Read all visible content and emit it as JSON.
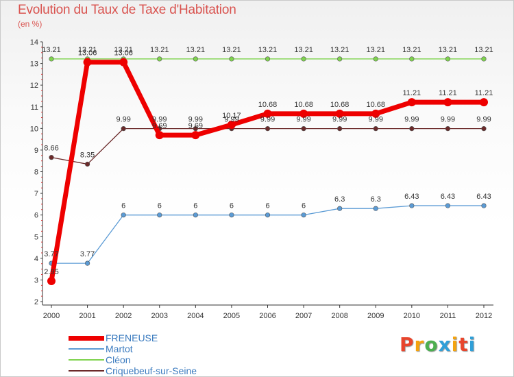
{
  "header": {
    "title": "Evolution du Taux de Taxe d'Habitation",
    "subtitle": "(en %)"
  },
  "logo": {
    "text": "Proxiti",
    "colors": [
      "#e8452c",
      "#f4a30f",
      "#4caf50",
      "#2f9fd8",
      "#f4a30f",
      "#e8452c",
      "#2f9fd8"
    ]
  },
  "chart_data": {
    "type": "line",
    "title": "Evolution du Taux de Taxe d'Habitation",
    "subtitle": "(en %)",
    "x": [
      "2000",
      "2001",
      "2002",
      "2003",
      "2004",
      "2005",
      "2006",
      "2007",
      "2008",
      "2009",
      "2010",
      "2011",
      "2012"
    ],
    "ylim": [
      2,
      14
    ],
    "yticks": [
      2,
      3,
      4,
      5,
      6,
      7,
      8,
      9,
      10,
      11,
      12,
      13,
      14
    ],
    "grid": false,
    "legend_position": "bottom-left",
    "series": [
      {
        "name": "FRENEUSE",
        "color": "#ee0000",
        "values": [
          2.95,
          13.06,
          13.06,
          9.69,
          9.69,
          10.17,
          10.68,
          10.68,
          10.68,
          10.68,
          11.21,
          11.21,
          11.21
        ],
        "labels": [
          "2.95",
          "13.06",
          "13.06",
          "9.69",
          "9.69",
          "10.17",
          "10.68",
          "10.68",
          "10.68",
          "10.68",
          "11.21",
          "11.21",
          "11.21"
        ]
      },
      {
        "name": "Martot",
        "color": "#5b9bd5",
        "values": [
          3.77,
          3.77,
          6,
          6,
          6,
          6,
          6,
          6,
          6.3,
          6.3,
          6.43,
          6.43,
          6.43
        ],
        "labels": [
          "3.77",
          "3.77",
          "6",
          "6",
          "6",
          "6",
          "6",
          "6",
          "6.3",
          "6.3",
          "6.43",
          "6.43",
          "6.43"
        ]
      },
      {
        "name": "Cléon",
        "color": "#7fd34e",
        "values": [
          13.21,
          13.21,
          13.21,
          13.21,
          13.21,
          13.21,
          13.21,
          13.21,
          13.21,
          13.21,
          13.21,
          13.21,
          13.21
        ],
        "labels": [
          "13.21",
          "13.21",
          "13.21",
          "13.21",
          "13.21",
          "13.21",
          "13.21",
          "13.21",
          "13.21",
          "13.21",
          "13.21",
          "13.21",
          "13.21"
        ]
      },
      {
        "name": "Criquebeuf-sur-Seine",
        "color": "#6b2a2a",
        "values": [
          8.66,
          8.35,
          9.99,
          9.99,
          9.99,
          9.99,
          9.99,
          9.99,
          9.99,
          9.99,
          9.99,
          9.99,
          9.99
        ],
        "labels": [
          "8.66",
          "8.35",
          "9.99",
          "9.99",
          "9.99",
          "9.99",
          "9.99",
          "9.99",
          "9.99",
          "9.99",
          "9.99",
          "9.99",
          "9.99"
        ]
      }
    ]
  }
}
